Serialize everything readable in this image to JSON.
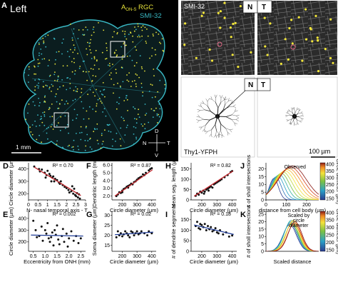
{
  "panel_letters": [
    "A",
    "B",
    "C",
    "D",
    "E",
    "F",
    "G",
    "H",
    "I",
    "J",
    "K"
  ],
  "panel_a": {
    "side_label": "Left",
    "legend_line1": "A",
    "legend_line1_sub": "ON-S",
    "legend_line1_rest": " RGC",
    "legend_line2": "SMI-32",
    "scalebar": "1 mm",
    "compass": {
      "n": "N",
      "t": "T",
      "d": "D",
      "v": "V"
    },
    "colors": {
      "background": "#000000",
      "rgc": "#e6e23a",
      "smi32": "#39b8c4"
    }
  },
  "panel_b": {
    "label": "SMI-32",
    "n": "N",
    "t": "T"
  },
  "panel_c": {
    "n": "N",
    "t": "T",
    "label": "Thy1-YFPH",
    "scalebar": "100 µm"
  },
  "chart_data": [
    {
      "panel": "D",
      "type": "scatter",
      "xlabel": "N- nasal temporal axis - T",
      "ylabel": "Circle diameter (µm)",
      "stat": "R² = 0.70",
      "fit_color": "#c0272d",
      "xticks": [
        "0",
        "0.5",
        "1",
        "1.5",
        "2",
        "2.5",
        "3"
      ],
      "yticks": [
        "200",
        "300",
        "400"
      ],
      "xlim": [
        0,
        3
      ],
      "ylim": [
        150,
        450
      ],
      "points": [
        [
          0.3,
          420
        ],
        [
          0.55,
          400
        ],
        [
          0.6,
          380
        ],
        [
          0.7,
          395
        ],
        [
          0.85,
          370
        ],
        [
          0.95,
          350
        ],
        [
          1.0,
          385
        ],
        [
          1.1,
          360
        ],
        [
          1.15,
          345
        ],
        [
          1.25,
          330
        ],
        [
          1.3,
          340
        ],
        [
          1.35,
          300
        ],
        [
          1.4,
          320
        ],
        [
          1.5,
          310
        ],
        [
          1.6,
          290
        ],
        [
          1.65,
          280
        ],
        [
          1.7,
          300
        ],
        [
          1.8,
          270
        ],
        [
          1.9,
          255
        ],
        [
          2.0,
          245
        ],
        [
          2.1,
          230
        ],
        [
          2.15,
          210
        ],
        [
          2.25,
          220
        ],
        [
          2.35,
          200
        ],
        [
          2.4,
          240
        ],
        [
          2.45,
          190
        ],
        [
          2.5,
          180
        ],
        [
          2.55,
          205
        ],
        [
          2.6,
          170
        ],
        [
          2.65,
          195
        ],
        [
          2.7,
          160
        ],
        [
          1.2,
          300
        ],
        [
          0.9,
          330
        ],
        [
          2.3,
          260
        ]
      ],
      "fit": [
        [
          0.3,
          415
        ],
        [
          2.75,
          185
        ]
      ]
    },
    {
      "panel": "E",
      "type": "scatter",
      "xlabel": "Eccentricity from ONH (mm)",
      "ylabel": "Circle diameter (µm)",
      "stat": "R² = 0.002",
      "fit_color": "#1f3c96",
      "xticks": [
        "0.5",
        "1.0",
        "1.5",
        "2.0",
        "2.5"
      ],
      "yticks": [
        "200",
        "300",
        "400"
      ],
      "xlim": [
        0.3,
        2.7
      ],
      "ylim": [
        120,
        460
      ],
      "points": [
        [
          0.5,
          380
        ],
        [
          0.6,
          300
        ],
        [
          0.65,
          240
        ],
        [
          0.75,
          250
        ],
        [
          0.85,
          330
        ],
        [
          0.9,
          210
        ],
        [
          1.0,
          300
        ],
        [
          1.05,
          270
        ],
        [
          1.1,
          360
        ],
        [
          1.2,
          200
        ],
        [
          1.25,
          240
        ],
        [
          1.3,
          280
        ],
        [
          1.35,
          170
        ],
        [
          1.4,
          300
        ],
        [
          1.45,
          260
        ],
        [
          1.5,
          340
        ],
        [
          1.55,
          220
        ],
        [
          1.6,
          180
        ],
        [
          1.7,
          250
        ],
        [
          1.75,
          310
        ],
        [
          1.8,
          200
        ],
        [
          1.9,
          270
        ],
        [
          1.95,
          160
        ],
        [
          2.0,
          230
        ],
        [
          2.1,
          290
        ],
        [
          2.2,
          210
        ],
        [
          2.3,
          250
        ],
        [
          2.4,
          190
        ],
        [
          2.5,
          230
        ],
        [
          1.15,
          230
        ]
      ],
      "fit": [
        [
          0.4,
          258
        ],
        [
          2.6,
          250
        ]
      ]
    },
    {
      "panel": "F",
      "type": "scatter",
      "xlabel": "Circle diameter (µm)",
      "ylabel": "Dendritic length (mm)",
      "stat": "R² = 0.87",
      "fit_color": "#c0272d",
      "xticks": [
        "200",
        "300",
        "400"
      ],
      "yticks": [
        "2.0",
        "3.0",
        "4.0",
        "5.0",
        "6.0"
      ],
      "xlim": [
        130,
        430
      ],
      "ylim": [
        1.5,
        6.3
      ],
      "points": [
        [
          160,
          2.0
        ],
        [
          170,
          2.2
        ],
        [
          180,
          2.5
        ],
        [
          190,
          2.4
        ],
        [
          200,
          2.7
        ],
        [
          210,
          2.9
        ],
        [
          220,
          3.0
        ],
        [
          230,
          3.2
        ],
        [
          240,
          3.1
        ],
        [
          250,
          3.4
        ],
        [
          260,
          3.6
        ],
        [
          270,
          3.5
        ],
        [
          280,
          3.8
        ],
        [
          290,
          3.9
        ],
        [
          300,
          4.1
        ],
        [
          310,
          4.3
        ],
        [
          320,
          4.4
        ],
        [
          330,
          4.5
        ],
        [
          340,
          4.8
        ],
        [
          350,
          4.7
        ],
        [
          360,
          5.0
        ],
        [
          380,
          5.3
        ],
        [
          390,
          5.5
        ],
        [
          400,
          5.6
        ],
        [
          240,
          3.3
        ],
        [
          200,
          2.5
        ]
      ],
      "fit": [
        [
          150,
          2.0
        ],
        [
          405,
          5.4
        ]
      ]
    },
    {
      "panel": "G",
      "type": "scatter",
      "xlabel": "Circle diameter (µm)",
      "ylabel": "Soma diameter (µm)",
      "stat": "R² = 0.02",
      "fit_color": "#1f3c96",
      "xticks": [
        "200",
        "300",
        "400"
      ],
      "yticks": [
        "15",
        "20",
        "25",
        "30"
      ],
      "xlim": [
        130,
        430
      ],
      "ylim": [
        12,
        32
      ],
      "points": [
        [
          160,
          19
        ],
        [
          170,
          22
        ],
        [
          180,
          20
        ],
        [
          190,
          21
        ],
        [
          200,
          19.5
        ],
        [
          210,
          20.5
        ],
        [
          220,
          22
        ],
        [
          230,
          21
        ],
        [
          240,
          20
        ],
        [
          250,
          19
        ],
        [
          260,
          22
        ],
        [
          270,
          21.5
        ],
        [
          280,
          20
        ],
        [
          290,
          21
        ],
        [
          300,
          22
        ],
        [
          310,
          20.5
        ],
        [
          320,
          21
        ],
        [
          330,
          22
        ],
        [
          350,
          21
        ],
        [
          370,
          20
        ],
        [
          380,
          22
        ],
        [
          400,
          21
        ]
      ],
      "fit": [
        [
          150,
          20.3
        ],
        [
          410,
          21.6
        ]
      ]
    },
    {
      "panel": "H",
      "type": "scatter",
      "xlabel": "Circle diameter (µm)",
      "ylabel": "Mean seg. length (µm)",
      "stat": "R² = 0.82",
      "fit_color": "#c0272d",
      "xticks": [
        "200",
        "300",
        "400"
      ],
      "yticks": [
        "0",
        "50",
        "100",
        "150"
      ],
      "xlim": [
        130,
        430
      ],
      "ylim": [
        0,
        180
      ],
      "points": [
        [
          160,
          20
        ],
        [
          170,
          30
        ],
        [
          180,
          25
        ],
        [
          190,
          40
        ],
        [
          200,
          35
        ],
        [
          210,
          45
        ],
        [
          220,
          40
        ],
        [
          230,
          50
        ],
        [
          240,
          55
        ],
        [
          250,
          60
        ],
        [
          260,
          65
        ],
        [
          270,
          60
        ],
        [
          280,
          75
        ],
        [
          290,
          80
        ],
        [
          300,
          85
        ],
        [
          310,
          90
        ],
        [
          320,
          95
        ],
        [
          330,
          100
        ],
        [
          350,
          110
        ],
        [
          370,
          120
        ],
        [
          390,
          135
        ],
        [
          400,
          140
        ],
        [
          215,
          30
        ],
        [
          245,
          45
        ]
      ],
      "fit": [
        [
          150,
          18
        ],
        [
          405,
          140
        ]
      ]
    },
    {
      "panel": "I",
      "type": "scatter",
      "xlabel": "Circle diameter (µm)",
      "ylabel": "# of dendrite segments",
      "stat": "R² = 0.18",
      "fit_color": "#1f3c96",
      "xticks": [
        "200",
        "300",
        "400"
      ],
      "yticks": [
        "0",
        "50",
        "100",
        "150"
      ],
      "xlim": [
        130,
        430
      ],
      "ylim": [
        0,
        190
      ],
      "points": [
        [
          160,
          120
        ],
        [
          170,
          140
        ],
        [
          180,
          110
        ],
        [
          190,
          130
        ],
        [
          200,
          125
        ],
        [
          210,
          115
        ],
        [
          220,
          130
        ],
        [
          230,
          100
        ],
        [
          240,
          120
        ],
        [
          250,
          105
        ],
        [
          260,
          115
        ],
        [
          270,
          95
        ],
        [
          280,
          100
        ],
        [
          290,
          110
        ],
        [
          300,
          90
        ],
        [
          310,
          85
        ],
        [
          320,
          100
        ],
        [
          340,
          80
        ],
        [
          360,
          90
        ],
        [
          380,
          70
        ],
        [
          400,
          75
        ],
        [
          190,
          105
        ]
      ],
      "fit": [
        [
          150,
          125
        ],
        [
          410,
          80
        ]
      ]
    },
    {
      "panel": "J",
      "type": "line",
      "xlabel": "distance from cell body (µm)",
      "ylabel": "# of sholl intersections",
      "legend_label": "Observed",
      "colorbar_label": "Circle diameter (µm)",
      "colorbar_ticks": [
        "400",
        "350",
        "300",
        "250",
        "200",
        "150"
      ],
      "xticks": [
        "0",
        "100",
        "200"
      ],
      "yticks": [
        "0",
        "5",
        "10",
        "15",
        "20"
      ],
      "xlim": [
        0,
        260
      ],
      "ylim": [
        0,
        24
      ]
    },
    {
      "panel": "K",
      "type": "line",
      "xlabel": "Scaled distance",
      "ylabel": "# of sholl intersections",
      "legend_label": "Scaled by circle diameter",
      "colorbar_label": "Circle diameter (µm)",
      "colorbar_ticks": [
        "400",
        "350",
        "300",
        "250",
        "200",
        "150"
      ],
      "xticks": [],
      "yticks": [
        "0",
        "5",
        "10",
        "15",
        "20",
        "25"
      ],
      "xlim": [
        0,
        1
      ],
      "ylim": [
        0,
        27
      ]
    }
  ]
}
